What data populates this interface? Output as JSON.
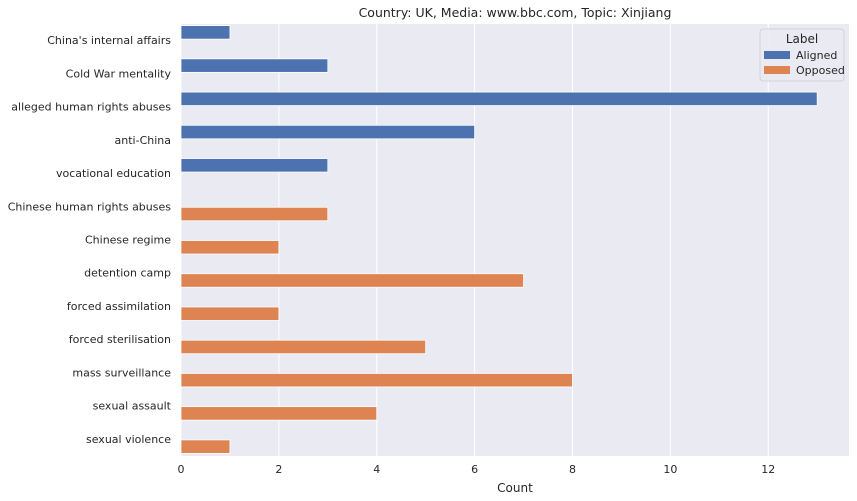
{
  "colors": {
    "plot_background": "#EAEAF2",
    "grid": "#FFFFFF",
    "aligned": "#4C72B0",
    "opposed": "#DD8452",
    "text": "#262626"
  },
  "chart_data": {
    "type": "bar",
    "orientation": "horizontal",
    "title": "Country: UK, Media: www.bbc.com, Topic: Xinjiang",
    "xlabel": "Count",
    "ylabel": "",
    "xlim": [
      0,
      13.65
    ],
    "xticks": [
      0,
      2,
      4,
      6,
      8,
      10,
      12
    ],
    "grid": true,
    "legend": {
      "title": "Label",
      "placement": "top-right",
      "entries": [
        "Aligned",
        "Opposed"
      ]
    },
    "categories": [
      "China's internal affairs",
      "Cold War mentality",
      "alleged human rights abuses",
      "anti-China",
      "vocational education",
      "Chinese human rights abuses",
      "Chinese regime",
      "detention camp",
      "forced assimilation",
      "forced sterilisation",
      "mass surveillance",
      "sexual assault",
      "sexual violence"
    ],
    "series": [
      {
        "name": "Aligned",
        "values": [
          1,
          3,
          13,
          6,
          3,
          null,
          null,
          null,
          null,
          null,
          null,
          null,
          null
        ]
      },
      {
        "name": "Opposed",
        "values": [
          null,
          null,
          null,
          null,
          null,
          3,
          2,
          7,
          2,
          5,
          8,
          4,
          1
        ]
      }
    ]
  }
}
